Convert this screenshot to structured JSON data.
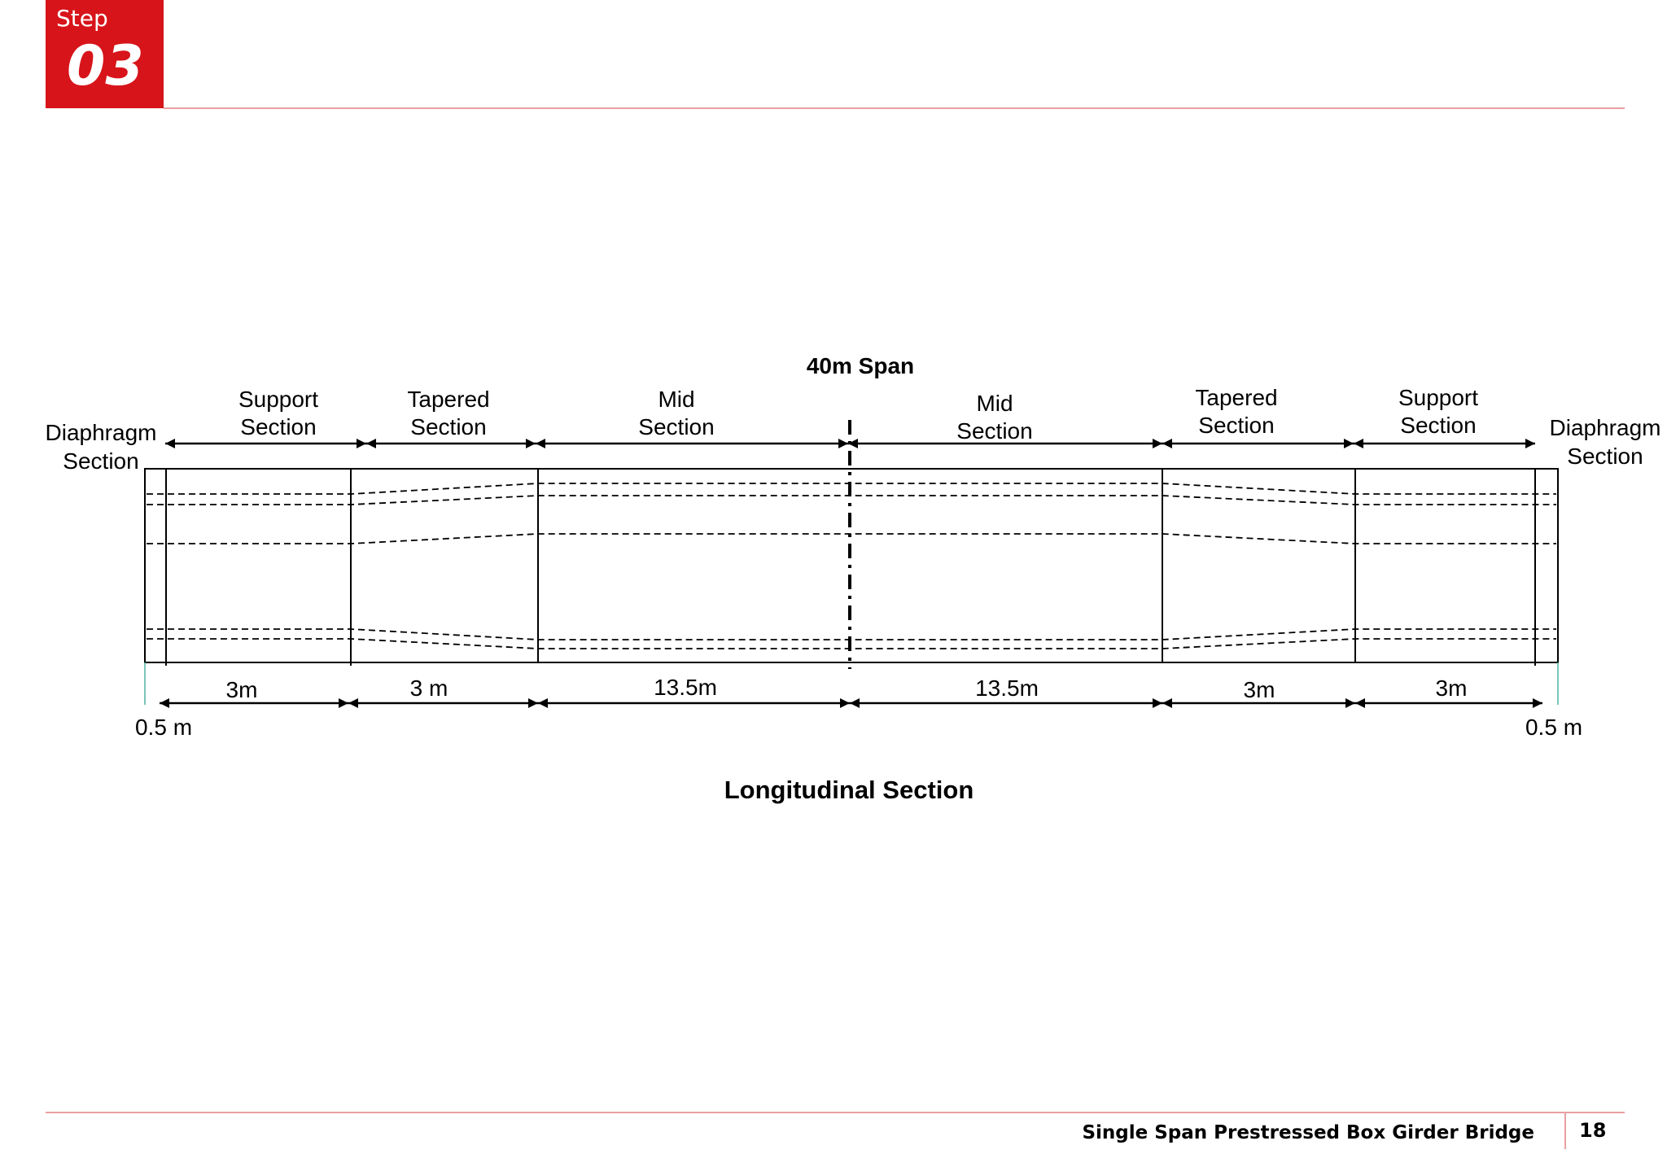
{
  "header": {
    "step_label": "Step",
    "step_number": "03"
  },
  "diagram": {
    "span_label": "40m Span",
    "title": "Longitudinal Section",
    "end_labels": {
      "left": [
        "Diaphragm",
        "Section"
      ],
      "right": [
        "Diaphragm",
        "Section"
      ]
    },
    "section_labels": [
      [
        "Support",
        "Section"
      ],
      [
        "Tapered",
        "Section"
      ],
      [
        "Mid",
        "Section"
      ],
      [
        "Mid",
        "Section"
      ],
      [
        "Tapered",
        "Section"
      ],
      [
        "Support",
        "Section"
      ]
    ],
    "dimensions": [
      "3m",
      "3 m",
      "13.5m",
      "13.5m",
      "3m",
      "3m"
    ],
    "end_dimensions": {
      "left": "0.5 m",
      "right": "0.5 m"
    }
  },
  "footer": {
    "title": "Single Span Prestressed Box Girder Bridge",
    "page": "18"
  }
}
